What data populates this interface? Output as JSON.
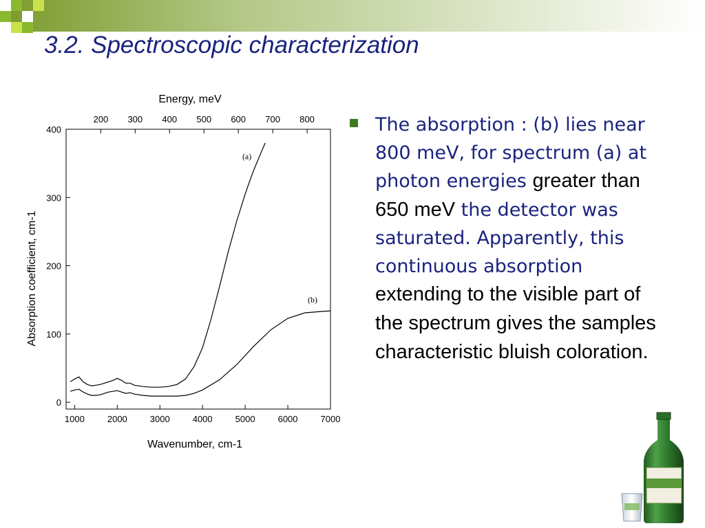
{
  "slide": {
    "title": "3.2. Spectroscopic characterization",
    "bullet": {
      "text_1": "The absorption : (b) lies near 800 meV, for spectrum (a) at photon energies ",
      "emph_1": "greater than 650 meV",
      "text_2": " the detector was saturated. Apparently, this continuous absorption ",
      "emph_2": "extending to the visible part of the spectrum gives the samples characteristic bluish coloration."
    },
    "colors": {
      "title": "#1a237e",
      "body": "#1a237e",
      "emphasis": "#000000",
      "accent_green": "#8ab82e",
      "bullet": "#3f7a1e"
    },
    "decoration": "green-squares-and-soju-bottle"
  },
  "chart_data": {
    "type": "line",
    "title": "",
    "xlabel": "Wavenumber, cm-1",
    "ylabel": "Absorption coefficient, cm-1",
    "top_axis_label": "Energy, meV",
    "xlim": [
      800,
      7000
    ],
    "ylim": [
      -10,
      400
    ],
    "x_ticks": [
      1000,
      2000,
      3000,
      4000,
      5000,
      6000,
      7000
    ],
    "y_ticks": [
      0,
      100,
      200,
      300,
      400
    ],
    "top_ticks_mev": [
      200,
      300,
      400,
      500,
      600,
      700,
      800
    ],
    "mev_to_wavenumber": 8.0655,
    "series": [
      {
        "name": "(a)",
        "x": [
          900,
          1000,
          1100,
          1200,
          1300,
          1400,
          1500,
          1600,
          1700,
          1800,
          1900,
          2000,
          2100,
          2200,
          2300,
          2400,
          2600,
          2800,
          3000,
          3200,
          3400,
          3600,
          3800,
          4000,
          4200,
          4400,
          4600,
          4800,
          5000,
          5100,
          5200,
          5300,
          5400,
          5470
        ],
        "y": [
          30,
          34,
          37,
          30,
          26,
          24,
          25,
          26,
          28,
          30,
          32,
          35,
          32,
          28,
          28,
          25,
          23,
          22,
          22,
          23,
          26,
          34,
          52,
          80,
          122,
          170,
          220,
          265,
          305,
          323,
          340,
          355,
          370,
          380
        ]
      },
      {
        "name": "(b)",
        "x": [
          900,
          1000,
          1100,
          1200,
          1300,
          1400,
          1500,
          1600,
          1700,
          1800,
          1900,
          2000,
          2100,
          2200,
          2300,
          2400,
          2600,
          2800,
          3000,
          3200,
          3400,
          3600,
          3800,
          4000,
          4400,
          4800,
          5200,
          5600,
          6000,
          6400,
          6800,
          7000
        ],
        "y": [
          16,
          18,
          19,
          15,
          12,
          10,
          10,
          11,
          13,
          15,
          16,
          17,
          15,
          13,
          14,
          12,
          10,
          9,
          9,
          9,
          9,
          10,
          13,
          18,
          33,
          55,
          82,
          106,
          123,
          131,
          133,
          134
        ]
      }
    ],
    "annotations": [
      {
        "text": "(a)",
        "x": 5040,
        "y": 356
      },
      {
        "text": "(b)",
        "x": 6580,
        "y": 146
      }
    ]
  }
}
